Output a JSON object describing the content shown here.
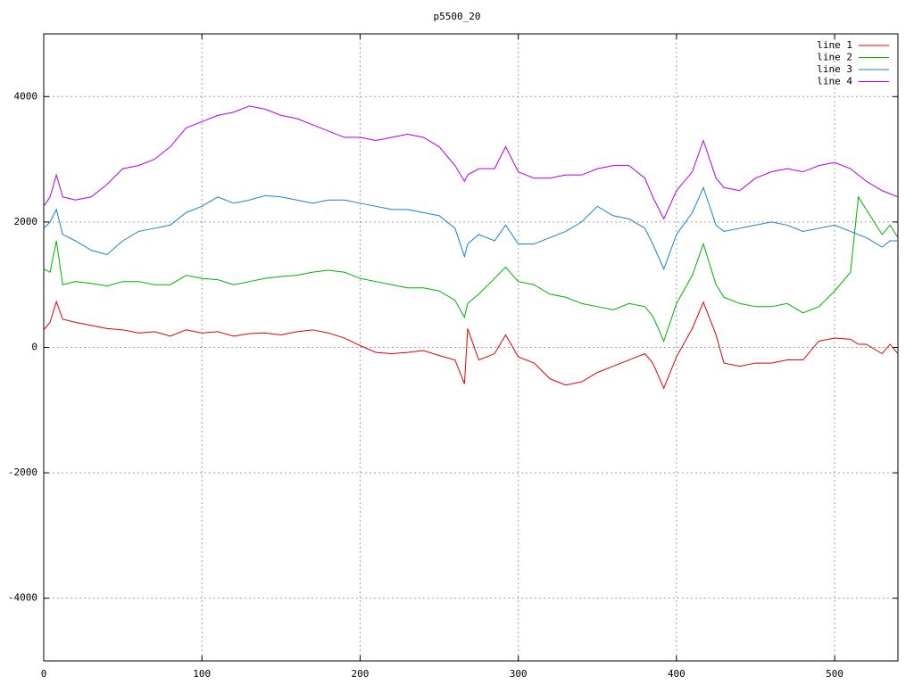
{
  "chart_data": {
    "type": "line",
    "title": "p5500_20",
    "x": [
      0,
      4,
      8,
      12,
      20,
      30,
      40,
      50,
      60,
      70,
      80,
      90,
      100,
      110,
      120,
      130,
      140,
      150,
      160,
      170,
      180,
      190,
      200,
      210,
      220,
      230,
      240,
      250,
      260,
      266,
      268,
      275,
      285,
      292,
      300,
      310,
      320,
      330,
      340,
      350,
      360,
      370,
      380,
      385,
      392,
      400,
      410,
      417,
      425,
      430,
      440,
      450,
      460,
      470,
      480,
      490,
      500,
      510,
      515,
      520,
      530,
      535,
      540
    ],
    "series": [
      {
        "name": "line 1",
        "color": "#e00000",
        "values": [
          280,
          400,
          730,
          450,
          400,
          350,
          300,
          280,
          230,
          250,
          180,
          280,
          230,
          250,
          180,
          220,
          230,
          200,
          250,
          280,
          230,
          150,
          30,
          -80,
          -100,
          -80,
          -50,
          -130,
          -200,
          -580,
          300,
          -200,
          -100,
          200,
          -150,
          -250,
          -500,
          -600,
          -550,
          -400,
          -300,
          -200,
          -100,
          -250,
          -650,
          -150,
          300,
          720,
          200,
          -250,
          -300,
          -250,
          -250,
          -200,
          -200,
          100,
          150,
          130,
          50,
          50,
          -100,
          50,
          -100
        ]
      },
      {
        "name": "line 2",
        "color": "#00b000",
        "values": [
          1250,
          1200,
          1700,
          1000,
          1050,
          1020,
          980,
          1050,
          1050,
          1000,
          1000,
          1150,
          1100,
          1080,
          1000,
          1050,
          1100,
          1130,
          1150,
          1200,
          1230,
          1200,
          1100,
          1050,
          1000,
          950,
          950,
          900,
          750,
          480,
          700,
          850,
          1100,
          1280,
          1050,
          1000,
          850,
          800,
          700,
          650,
          600,
          700,
          650,
          500,
          100,
          700,
          1150,
          1650,
          1000,
          800,
          700,
          650,
          650,
          700,
          550,
          650,
          900,
          1200,
          2400,
          2200,
          1800,
          1950,
          1750
        ]
      },
      {
        "name": "line 3",
        "color": "#1a80d0",
        "values": [
          1900,
          2000,
          2200,
          1800,
          1700,
          1550,
          1480,
          1700,
          1850,
          1900,
          1950,
          2150,
          2250,
          2400,
          2300,
          2350,
          2420,
          2400,
          2350,
          2300,
          2350,
          2350,
          2300,
          2250,
          2200,
          2200,
          2150,
          2100,
          1900,
          1450,
          1650,
          1800,
          1700,
          1950,
          1650,
          1650,
          1750,
          1850,
          2000,
          2250,
          2100,
          2050,
          1900,
          1650,
          1250,
          1800,
          2150,
          2550,
          1950,
          1850,
          1900,
          1950,
          2000,
          1950,
          1850,
          1900,
          1950,
          1850,
          1800,
          1750,
          1600,
          1700,
          1700
        ]
      },
      {
        "name": "line 4",
        "color": "#b000e0",
        "values": [
          2250,
          2400,
          2750,
          2400,
          2350,
          2400,
          2600,
          2850,
          2900,
          3000,
          3200,
          3500,
          3600,
          3700,
          3750,
          3850,
          3800,
          3700,
          3650,
          3550,
          3450,
          3350,
          3350,
          3300,
          3350,
          3400,
          3350,
          3200,
          2900,
          2650,
          2750,
          2850,
          2850,
          3200,
          2800,
          2700,
          2700,
          2750,
          2750,
          2850,
          2900,
          2900,
          2700,
          2400,
          2050,
          2500,
          2800,
          3300,
          2700,
          2550,
          2500,
          2700,
          2800,
          2850,
          2800,
          2900,
          2950,
          2850,
          2750,
          2650,
          2500,
          2450,
          2400
        ]
      }
    ],
    "xlim": [
      0,
      540
    ],
    "ylim": [
      -5000,
      5000
    ],
    "xticks": [
      0,
      100,
      200,
      300,
      400,
      500
    ],
    "yticks": [
      -4000,
      -2000,
      0,
      2000,
      4000
    ],
    "grid": true,
    "legend": "top-right"
  }
}
